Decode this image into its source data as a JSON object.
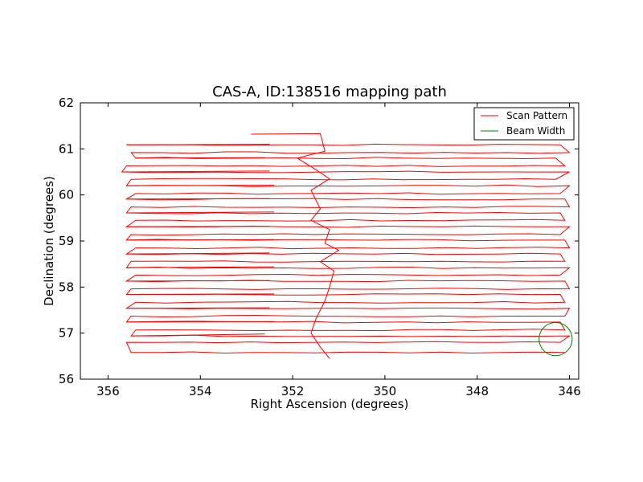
{
  "chart_data": {
    "type": "line",
    "title": "CAS-A, ID:138516 mapping path",
    "xlabel": "Right Ascension (degrees)",
    "ylabel": "Declination (degrees)",
    "xlim": [
      356.6,
      345.8
    ],
    "ylim": [
      56,
      62
    ],
    "x_inverted": true,
    "xticks": [
      356,
      354,
      352,
      350,
      348,
      346
    ],
    "yticks": [
      56,
      57,
      58,
      59,
      60,
      61,
      62
    ],
    "grid": false,
    "legend": {
      "placement": "top-right",
      "entries": [
        {
          "name": "Scan Pattern",
          "color": "#ff0000"
        },
        {
          "name": "Beam Width",
          "color": "#008000"
        }
      ]
    },
    "series": [
      {
        "name": "Scan Pattern",
        "color": "#ff0000",
        "scan_rows": [
          {
            "dec": 61.09,
            "ra_start": 355.6,
            "ra_end": 346.2
          },
          {
            "dec": 60.92,
            "ra_start": 355.5,
            "ra_end": 346.0
          },
          {
            "dec": 60.8,
            "ra_start": 355.4,
            "ra_end": 346.3
          },
          {
            "dec": 60.63,
            "ra_start": 355.6,
            "ra_end": 346.1
          },
          {
            "dec": 60.5,
            "ra_start": 355.7,
            "ra_end": 346.0
          },
          {
            "dec": 60.34,
            "ra_start": 355.5,
            "ra_end": 346.3
          },
          {
            "dec": 60.2,
            "ra_start": 355.6,
            "ra_end": 346.0
          },
          {
            "dec": 60.03,
            "ra_start": 355.4,
            "ra_end": 346.2
          },
          {
            "dec": 59.91,
            "ra_start": 355.6,
            "ra_end": 346.1
          },
          {
            "dec": 59.74,
            "ra_start": 355.5,
            "ra_end": 346.0
          },
          {
            "dec": 59.61,
            "ra_start": 355.6,
            "ra_end": 346.2
          },
          {
            "dec": 59.45,
            "ra_start": 355.4,
            "ra_end": 346.1
          },
          {
            "dec": 59.31,
            "ra_start": 355.6,
            "ra_end": 346.0
          },
          {
            "dec": 59.14,
            "ra_start": 355.5,
            "ra_end": 346.2
          },
          {
            "dec": 59.02,
            "ra_start": 355.6,
            "ra_end": 346.1
          },
          {
            "dec": 58.85,
            "ra_start": 355.4,
            "ra_end": 346.0
          },
          {
            "dec": 58.72,
            "ra_start": 355.6,
            "ra_end": 346.2
          },
          {
            "dec": 58.56,
            "ra_start": 355.5,
            "ra_end": 346.1
          },
          {
            "dec": 58.42,
            "ra_start": 355.6,
            "ra_end": 346.0
          },
          {
            "dec": 58.26,
            "ra_start": 355.4,
            "ra_end": 346.2
          },
          {
            "dec": 58.13,
            "ra_start": 355.6,
            "ra_end": 346.1
          },
          {
            "dec": 57.96,
            "ra_start": 355.5,
            "ra_end": 346.0
          },
          {
            "dec": 57.84,
            "ra_start": 355.6,
            "ra_end": 346.2
          },
          {
            "dec": 57.67,
            "ra_start": 355.4,
            "ra_end": 346.1
          },
          {
            "dec": 57.54,
            "ra_start": 355.6,
            "ra_end": 346.0
          },
          {
            "dec": 57.37,
            "ra_start": 355.5,
            "ra_end": 346.1
          },
          {
            "dec": 57.24,
            "ra_start": 355.6,
            "ra_end": 346.2
          },
          {
            "dec": 57.07,
            "ra_start": 355.4,
            "ra_end": 346.1
          },
          {
            "dec": 56.94,
            "ra_start": 355.5,
            "ra_end": 346.0
          },
          {
            "dec": 56.8,
            "ra_start": 355.6,
            "ra_end": 346.2
          },
          {
            "dec": 56.58,
            "ra_start": 355.5,
            "ra_end": 346.1
          }
        ],
        "turnaround_path": [
          [
            352.9,
            61.32
          ],
          [
            351.4,
            61.33
          ],
          [
            351.3,
            60.95
          ],
          [
            351.9,
            60.8
          ],
          [
            351.5,
            60.55
          ],
          [
            351.2,
            60.35
          ],
          [
            351.6,
            60.1
          ],
          [
            351.4,
            59.7
          ],
          [
            351.6,
            59.45
          ],
          [
            351.2,
            59.25
          ],
          [
            351.3,
            58.95
          ],
          [
            351.0,
            58.8
          ],
          [
            351.4,
            58.55
          ],
          [
            351.1,
            58.35
          ],
          [
            351.2,
            58.0
          ],
          [
            351.3,
            57.7
          ],
          [
            351.5,
            57.3
          ],
          [
            351.6,
            57.0
          ],
          [
            351.4,
            56.7
          ],
          [
            351.2,
            56.45
          ]
        ]
      },
      {
        "name": "Beam Width",
        "color": "#008000",
        "circle": {
          "ra": 346.3,
          "dec": 56.87,
          "radius_deg": 0.36
        }
      }
    ]
  }
}
